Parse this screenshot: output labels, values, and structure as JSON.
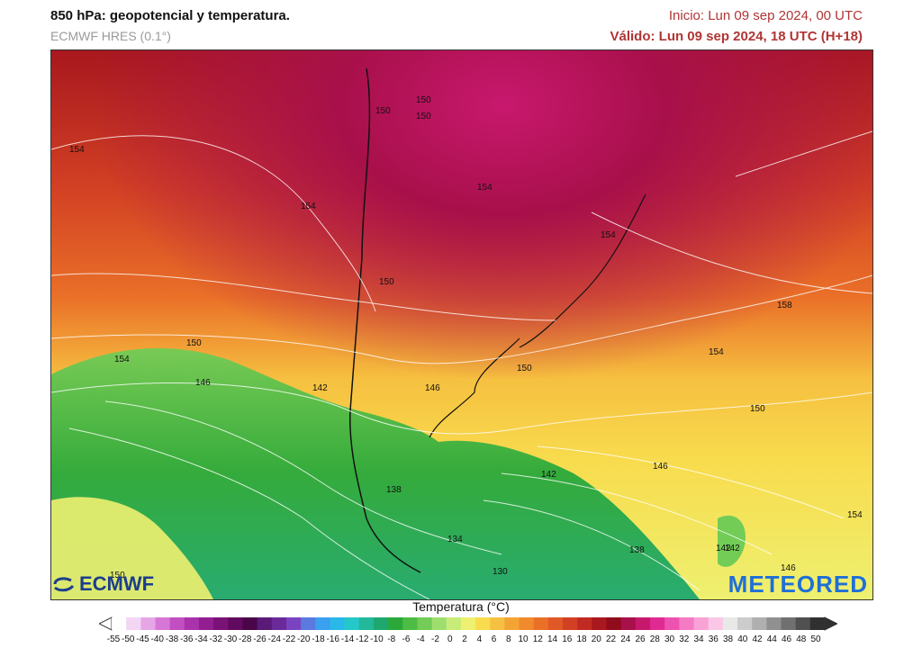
{
  "header": {
    "title": "850 hPa: geopotencial y temperatura.",
    "model": "ECMWF HRES (0.1°)",
    "init": "Inicio: Lun 09 sep 2024, 00 UTC",
    "valid": "Válido: Lun 09 sep 2024, 18 UTC (H+18)"
  },
  "map": {
    "contour_labels": [
      "150",
      "150",
      "150",
      "154",
      "154",
      "154",
      "150",
      "154",
      "158",
      "154",
      "150",
      "150",
      "154",
      "146",
      "142",
      "146",
      "150",
      "142",
      "138",
      "146",
      "134",
      "142",
      "138",
      "130",
      "142",
      "146",
      "154",
      "150"
    ]
  },
  "logos": {
    "left": "ECMWF",
    "right": "METEORED"
  },
  "legend": {
    "title": "Temperatura (°C)",
    "ticks": [
      "-55",
      "-50",
      "-45",
      "-40",
      "-38",
      "-36",
      "-34",
      "-32",
      "-30",
      "-28",
      "-26",
      "-24",
      "-22",
      "-20",
      "-18",
      "-16",
      "-14",
      "-12",
      "-10",
      "-8",
      "-6",
      "-4",
      "-2",
      "0",
      "2",
      "4",
      "6",
      "8",
      "10",
      "12",
      "14",
      "16",
      "18",
      "20",
      "22",
      "24",
      "26",
      "28",
      "30",
      "32",
      "34",
      "36",
      "38",
      "40",
      "42",
      "44",
      "46",
      "48",
      "50"
    ],
    "colors": [
      "#ffffff",
      "#f3d6f3",
      "#e6a6e6",
      "#d676d6",
      "#c24fc2",
      "#aa32aa",
      "#921e92",
      "#7a1278",
      "#620a60",
      "#4a0648",
      "#5a1a78",
      "#6a2a9a",
      "#7a44c0",
      "#5a7ae0",
      "#3aa0f0",
      "#2ab8e8",
      "#24c8c8",
      "#22b89a",
      "#1ea870",
      "#2aa83a",
      "#4cbc44",
      "#72cc56",
      "#9ede6e",
      "#c8ec7a",
      "#eef070",
      "#f8dc4e",
      "#f6c040",
      "#f4a434",
      "#f08a2c",
      "#ea7028",
      "#e05826",
      "#d24024",
      "#c02a22",
      "#a8181e",
      "#900c1c",
      "#a8104a",
      "#c8186e",
      "#e02a92",
      "#ee52b0",
      "#f47ac4",
      "#f8a2d6",
      "#fac8e6",
      "#e8e8e8",
      "#cccccc",
      "#b0b0b0",
      "#909090",
      "#707070",
      "#505050",
      "#303030"
    ]
  }
}
